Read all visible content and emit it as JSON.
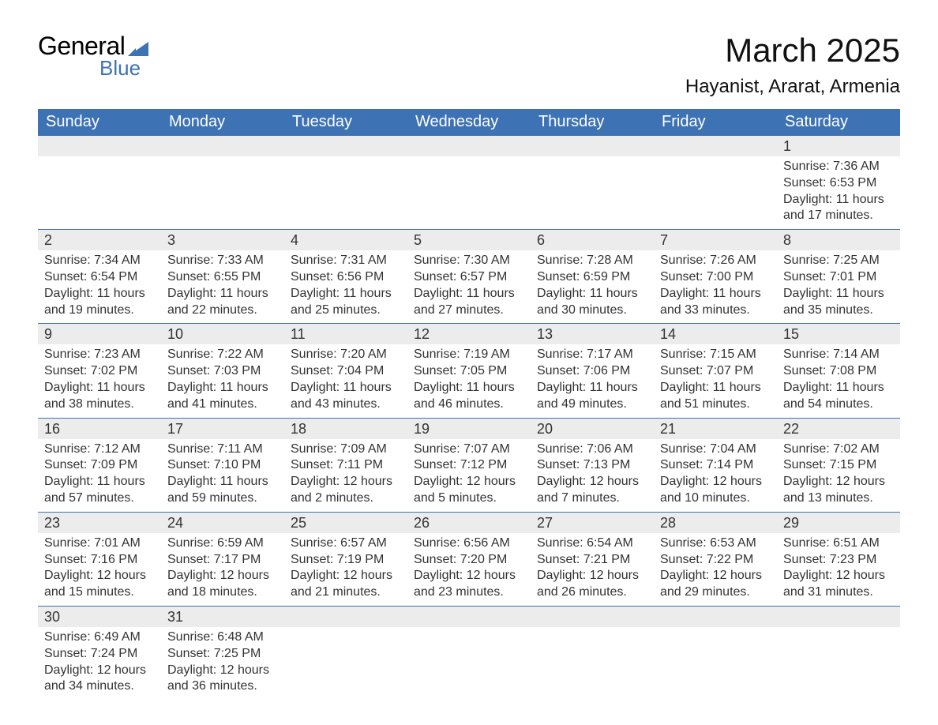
{
  "brand": {
    "name_part1": "General",
    "name_part2": "Blue",
    "text_color_part1": "#000000",
    "text_color_part2": "#3d72b4",
    "icon_color": "#3d72b4"
  },
  "header": {
    "title": "March 2025",
    "location": "Hayanist, Ararat, Armenia",
    "title_fontsize": 42,
    "location_fontsize": 24
  },
  "calendar": {
    "type": "table",
    "header_bg": "#3d72b4",
    "header_text_color": "#ffffff",
    "daynum_bg": "#ececec",
    "row_divider_color": "#3d72b4",
    "text_color": "#333333",
    "body_bg": "#ffffff",
    "header_fontsize": 20,
    "daynum_fontsize": 18,
    "body_fontsize": 16,
    "columns": [
      "Sunday",
      "Monday",
      "Tuesday",
      "Wednesday",
      "Thursday",
      "Friday",
      "Saturday"
    ],
    "weeks": [
      [
        {
          "blank": true
        },
        {
          "blank": true
        },
        {
          "blank": true
        },
        {
          "blank": true
        },
        {
          "blank": true
        },
        {
          "blank": true
        },
        {
          "day": "1",
          "sunrise": "Sunrise: 7:36 AM",
          "sunset": "Sunset: 6:53 PM",
          "daylight1": "Daylight: 11 hours",
          "daylight2": "and 17 minutes."
        }
      ],
      [
        {
          "day": "2",
          "sunrise": "Sunrise: 7:34 AM",
          "sunset": "Sunset: 6:54 PM",
          "daylight1": "Daylight: 11 hours",
          "daylight2": "and 19 minutes."
        },
        {
          "day": "3",
          "sunrise": "Sunrise: 7:33 AM",
          "sunset": "Sunset: 6:55 PM",
          "daylight1": "Daylight: 11 hours",
          "daylight2": "and 22 minutes."
        },
        {
          "day": "4",
          "sunrise": "Sunrise: 7:31 AM",
          "sunset": "Sunset: 6:56 PM",
          "daylight1": "Daylight: 11 hours",
          "daylight2": "and 25 minutes."
        },
        {
          "day": "5",
          "sunrise": "Sunrise: 7:30 AM",
          "sunset": "Sunset: 6:57 PM",
          "daylight1": "Daylight: 11 hours",
          "daylight2": "and 27 minutes."
        },
        {
          "day": "6",
          "sunrise": "Sunrise: 7:28 AM",
          "sunset": "Sunset: 6:59 PM",
          "daylight1": "Daylight: 11 hours",
          "daylight2": "and 30 minutes."
        },
        {
          "day": "7",
          "sunrise": "Sunrise: 7:26 AM",
          "sunset": "Sunset: 7:00 PM",
          "daylight1": "Daylight: 11 hours",
          "daylight2": "and 33 minutes."
        },
        {
          "day": "8",
          "sunrise": "Sunrise: 7:25 AM",
          "sunset": "Sunset: 7:01 PM",
          "daylight1": "Daylight: 11 hours",
          "daylight2": "and 35 minutes."
        }
      ],
      [
        {
          "day": "9",
          "sunrise": "Sunrise: 7:23 AM",
          "sunset": "Sunset: 7:02 PM",
          "daylight1": "Daylight: 11 hours",
          "daylight2": "and 38 minutes."
        },
        {
          "day": "10",
          "sunrise": "Sunrise: 7:22 AM",
          "sunset": "Sunset: 7:03 PM",
          "daylight1": "Daylight: 11 hours",
          "daylight2": "and 41 minutes."
        },
        {
          "day": "11",
          "sunrise": "Sunrise: 7:20 AM",
          "sunset": "Sunset: 7:04 PM",
          "daylight1": "Daylight: 11 hours",
          "daylight2": "and 43 minutes."
        },
        {
          "day": "12",
          "sunrise": "Sunrise: 7:19 AM",
          "sunset": "Sunset: 7:05 PM",
          "daylight1": "Daylight: 11 hours",
          "daylight2": "and 46 minutes."
        },
        {
          "day": "13",
          "sunrise": "Sunrise: 7:17 AM",
          "sunset": "Sunset: 7:06 PM",
          "daylight1": "Daylight: 11 hours",
          "daylight2": "and 49 minutes."
        },
        {
          "day": "14",
          "sunrise": "Sunrise: 7:15 AM",
          "sunset": "Sunset: 7:07 PM",
          "daylight1": "Daylight: 11 hours",
          "daylight2": "and 51 minutes."
        },
        {
          "day": "15",
          "sunrise": "Sunrise: 7:14 AM",
          "sunset": "Sunset: 7:08 PM",
          "daylight1": "Daylight: 11 hours",
          "daylight2": "and 54 minutes."
        }
      ],
      [
        {
          "day": "16",
          "sunrise": "Sunrise: 7:12 AM",
          "sunset": "Sunset: 7:09 PM",
          "daylight1": "Daylight: 11 hours",
          "daylight2": "and 57 minutes."
        },
        {
          "day": "17",
          "sunrise": "Sunrise: 7:11 AM",
          "sunset": "Sunset: 7:10 PM",
          "daylight1": "Daylight: 11 hours",
          "daylight2": "and 59 minutes."
        },
        {
          "day": "18",
          "sunrise": "Sunrise: 7:09 AM",
          "sunset": "Sunset: 7:11 PM",
          "daylight1": "Daylight: 12 hours",
          "daylight2": "and 2 minutes."
        },
        {
          "day": "19",
          "sunrise": "Sunrise: 7:07 AM",
          "sunset": "Sunset: 7:12 PM",
          "daylight1": "Daylight: 12 hours",
          "daylight2": "and 5 minutes."
        },
        {
          "day": "20",
          "sunrise": "Sunrise: 7:06 AM",
          "sunset": "Sunset: 7:13 PM",
          "daylight1": "Daylight: 12 hours",
          "daylight2": "and 7 minutes."
        },
        {
          "day": "21",
          "sunrise": "Sunrise: 7:04 AM",
          "sunset": "Sunset: 7:14 PM",
          "daylight1": "Daylight: 12 hours",
          "daylight2": "and 10 minutes."
        },
        {
          "day": "22",
          "sunrise": "Sunrise: 7:02 AM",
          "sunset": "Sunset: 7:15 PM",
          "daylight1": "Daylight: 12 hours",
          "daylight2": "and 13 minutes."
        }
      ],
      [
        {
          "day": "23",
          "sunrise": "Sunrise: 7:01 AM",
          "sunset": "Sunset: 7:16 PM",
          "daylight1": "Daylight: 12 hours",
          "daylight2": "and 15 minutes."
        },
        {
          "day": "24",
          "sunrise": "Sunrise: 6:59 AM",
          "sunset": "Sunset: 7:17 PM",
          "daylight1": "Daylight: 12 hours",
          "daylight2": "and 18 minutes."
        },
        {
          "day": "25",
          "sunrise": "Sunrise: 6:57 AM",
          "sunset": "Sunset: 7:19 PM",
          "daylight1": "Daylight: 12 hours",
          "daylight2": "and 21 minutes."
        },
        {
          "day": "26",
          "sunrise": "Sunrise: 6:56 AM",
          "sunset": "Sunset: 7:20 PM",
          "daylight1": "Daylight: 12 hours",
          "daylight2": "and 23 minutes."
        },
        {
          "day": "27",
          "sunrise": "Sunrise: 6:54 AM",
          "sunset": "Sunset: 7:21 PM",
          "daylight1": "Daylight: 12 hours",
          "daylight2": "and 26 minutes."
        },
        {
          "day": "28",
          "sunrise": "Sunrise: 6:53 AM",
          "sunset": "Sunset: 7:22 PM",
          "daylight1": "Daylight: 12 hours",
          "daylight2": "and 29 minutes."
        },
        {
          "day": "29",
          "sunrise": "Sunrise: 6:51 AM",
          "sunset": "Sunset: 7:23 PM",
          "daylight1": "Daylight: 12 hours",
          "daylight2": "and 31 minutes."
        }
      ],
      [
        {
          "day": "30",
          "sunrise": "Sunrise: 6:49 AM",
          "sunset": "Sunset: 7:24 PM",
          "daylight1": "Daylight: 12 hours",
          "daylight2": "and 34 minutes."
        },
        {
          "day": "31",
          "sunrise": "Sunrise: 6:48 AM",
          "sunset": "Sunset: 7:25 PM",
          "daylight1": "Daylight: 12 hours",
          "daylight2": "and 36 minutes."
        },
        {
          "blank": true
        },
        {
          "blank": true
        },
        {
          "blank": true
        },
        {
          "blank": true
        },
        {
          "blank": true
        }
      ]
    ]
  }
}
